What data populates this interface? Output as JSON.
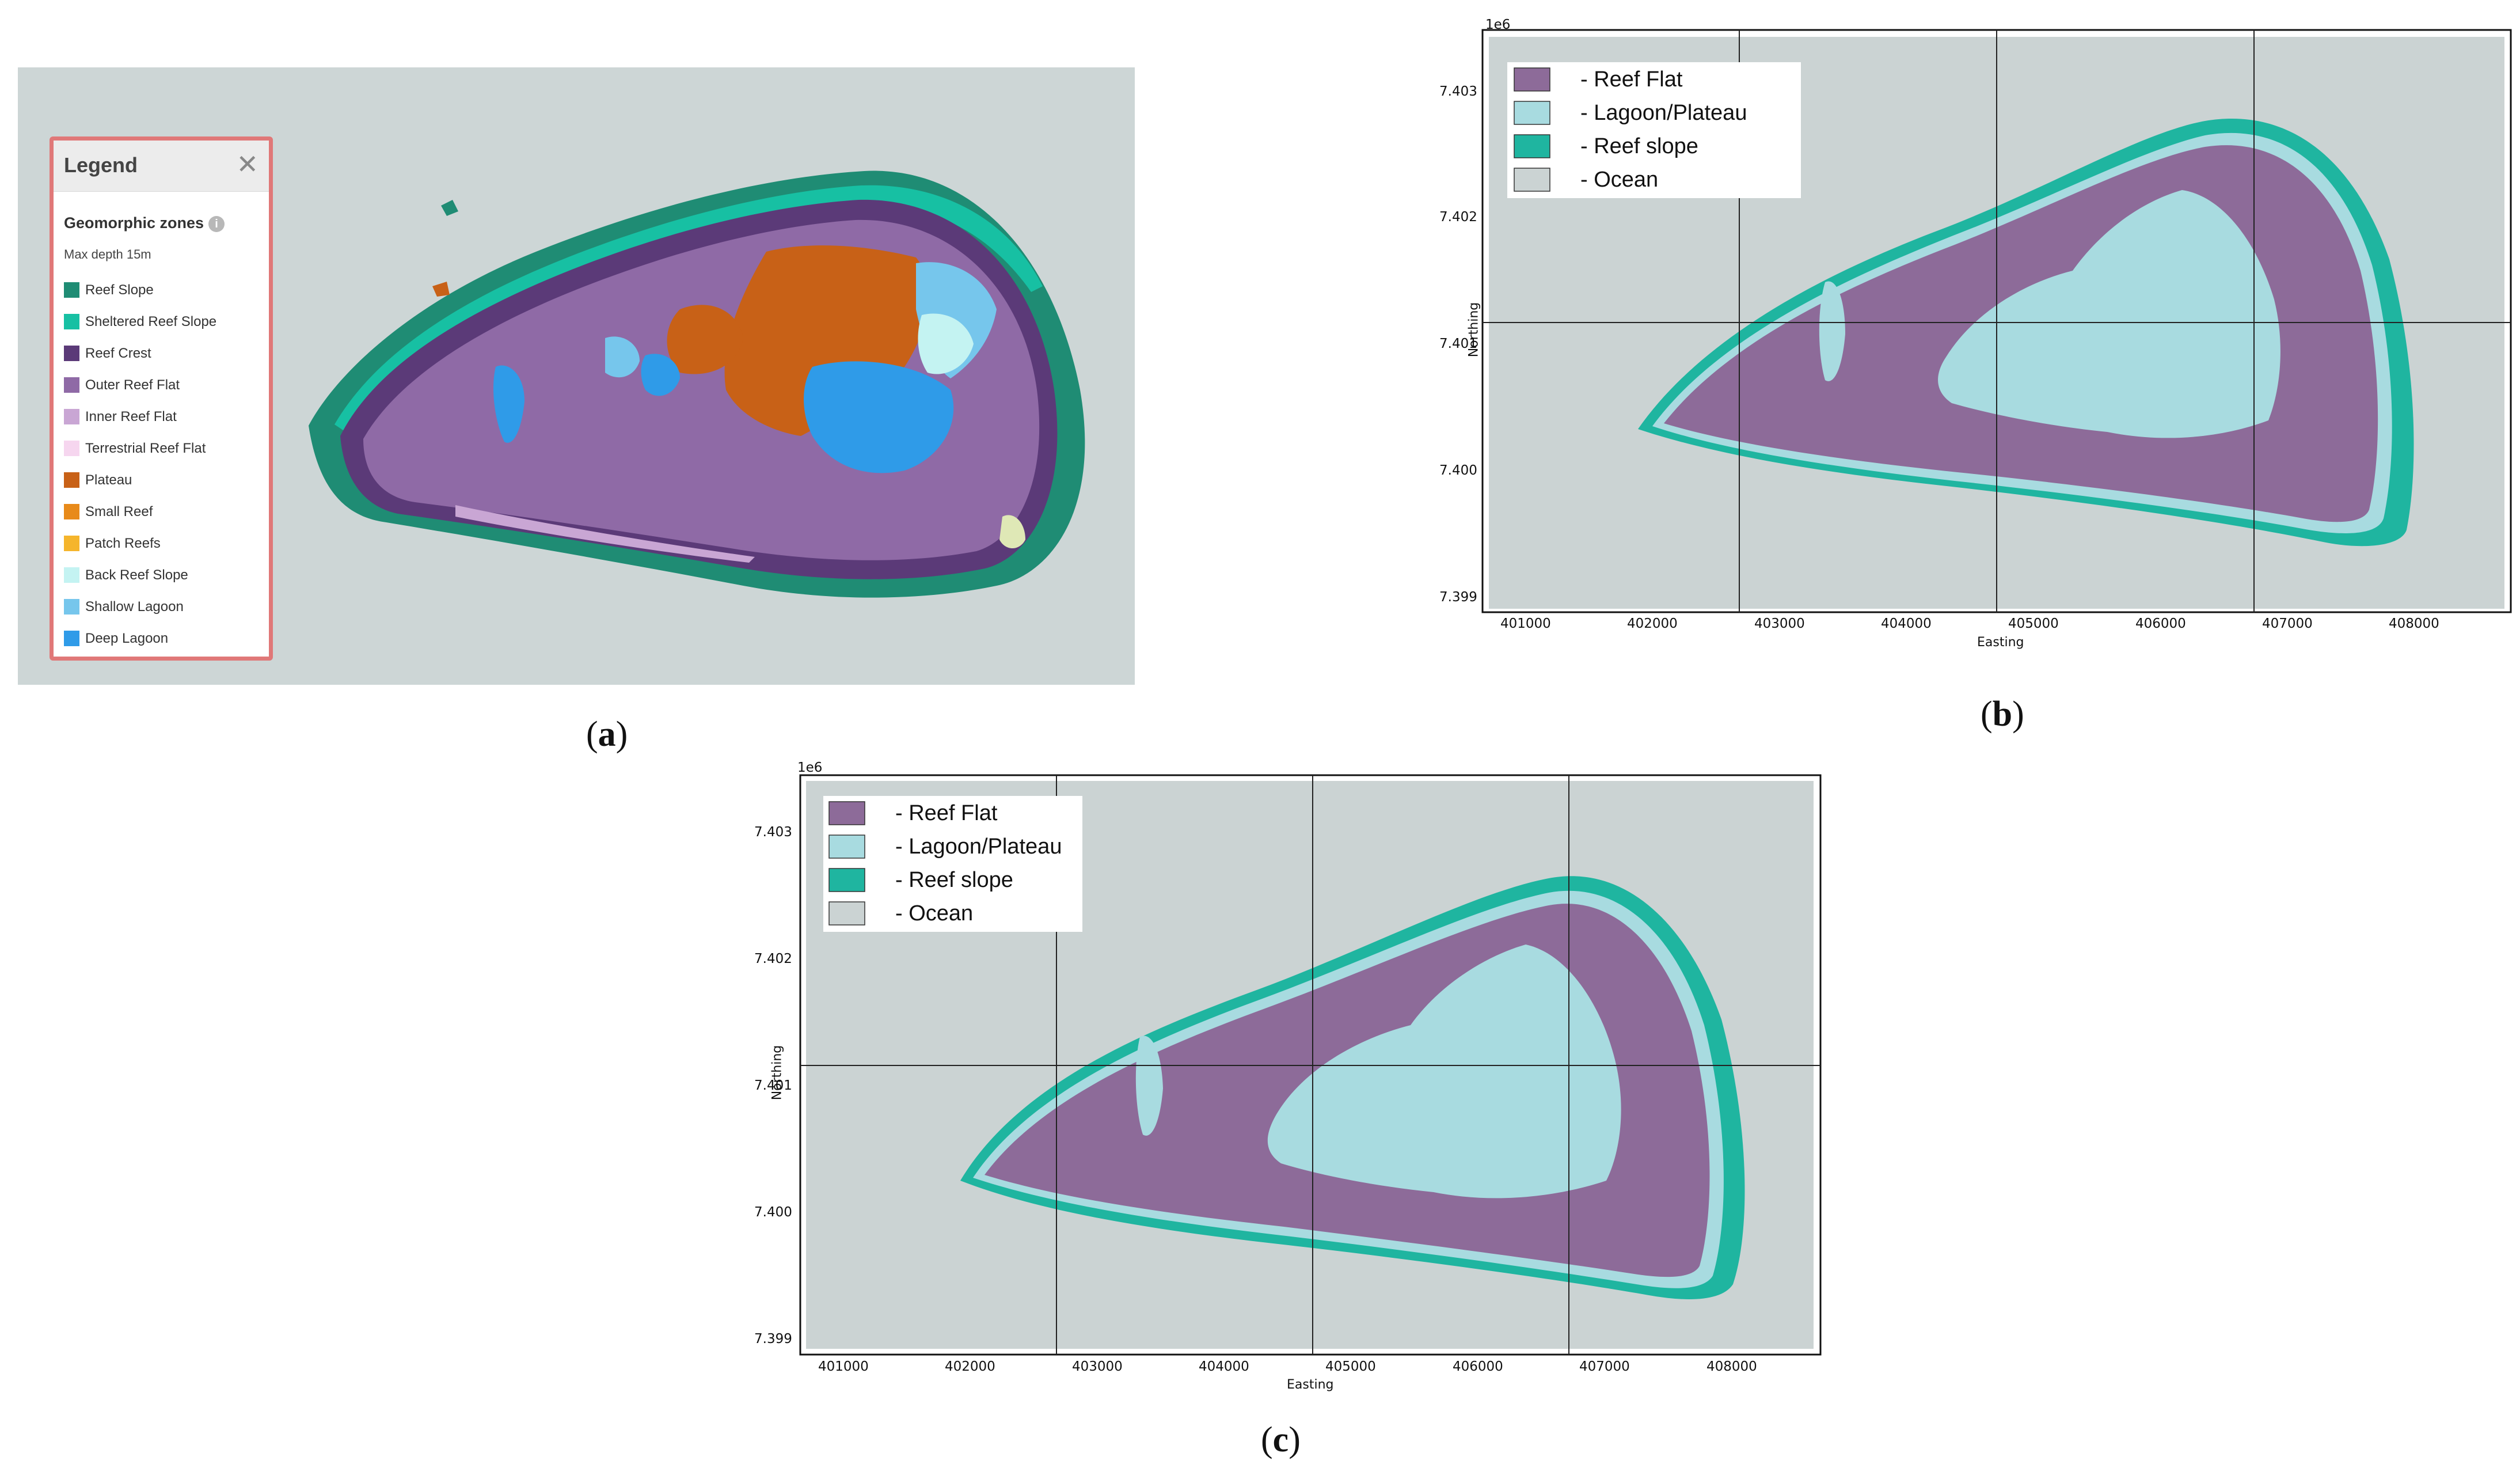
{
  "panel_a": {
    "legend": {
      "title": "Legend",
      "close": "✕",
      "section_title": "Geomorphic zones",
      "info_icon": "i",
      "depth_note": "Max depth 15m",
      "items": [
        {
          "label": "Reef Slope",
          "color": "#1f8c74"
        },
        {
          "label": "Sheltered Reef Slope",
          "color": "#17c0a3"
        },
        {
          "label": "Reef Crest",
          "color": "#5b3a78"
        },
        {
          "label": "Outer Reef Flat",
          "color": "#8f6aa6"
        },
        {
          "label": "Inner Reef Flat",
          "color": "#c9a6d4"
        },
        {
          "label": "Terrestrial Reef Flat",
          "color": "#f6d6ef"
        },
        {
          "label": "Plateau",
          "color": "#c86117"
        },
        {
          "label": "Small Reef",
          "color": "#e88a1a"
        },
        {
          "label": "Patch Reefs",
          "color": "#f5b52c"
        },
        {
          "label": "Back Reef Slope",
          "color": "#c4f3f2"
        },
        {
          "label": "Shallow Lagoon",
          "color": "#76c6ec"
        },
        {
          "label": "Deep Lagoon",
          "color": "#2f9be8"
        }
      ]
    }
  },
  "panel_b": {
    "caption_letter": "b",
    "offset_label": "1e6",
    "xlabel": "Easting",
    "ylabel": "Northing",
    "xticks": [
      "401000",
      "402000",
      "403000",
      "404000",
      "405000",
      "406000",
      "407000",
      "408000"
    ],
    "yticks": [
      "7.403",
      "7.402",
      "7.401",
      "7.400",
      "7.399"
    ],
    "legend": [
      {
        "label": "- Reef Flat",
        "color": "#8d6b99"
      },
      {
        "label": "- Lagoon/Plateau",
        "color": "#a8dbe0"
      },
      {
        "label": "- Reef slope",
        "color": "#1fb5a0"
      },
      {
        "label": "- Ocean",
        "color": "#cbd3d3"
      }
    ]
  },
  "panel_c": {
    "caption_letter": "c",
    "offset_label": "1e6",
    "xlabel": "Easting",
    "ylabel": "Northing",
    "xticks": [
      "401000",
      "402000",
      "403000",
      "404000",
      "405000",
      "406000",
      "407000",
      "408000"
    ],
    "yticks": [
      "7.403",
      "7.402",
      "7.401",
      "7.400",
      "7.399"
    ],
    "legend": [
      {
        "label": "- Reef Flat",
        "color": "#8d6b99"
      },
      {
        "label": "- Lagoon/Plateau",
        "color": "#a8dbe0"
      },
      {
        "label": "- Reef slope",
        "color": "#1fb5a0"
      },
      {
        "label": "- Ocean",
        "color": "#cbd3d3"
      }
    ]
  },
  "captions": {
    "a": "a",
    "b": "b",
    "c": "c"
  },
  "colors": {
    "ocean": "#cbd3d3",
    "reef_flat": "#8d6b99",
    "lagoon": "#a8dbe0",
    "reef_slope": "#1fb5a0"
  }
}
